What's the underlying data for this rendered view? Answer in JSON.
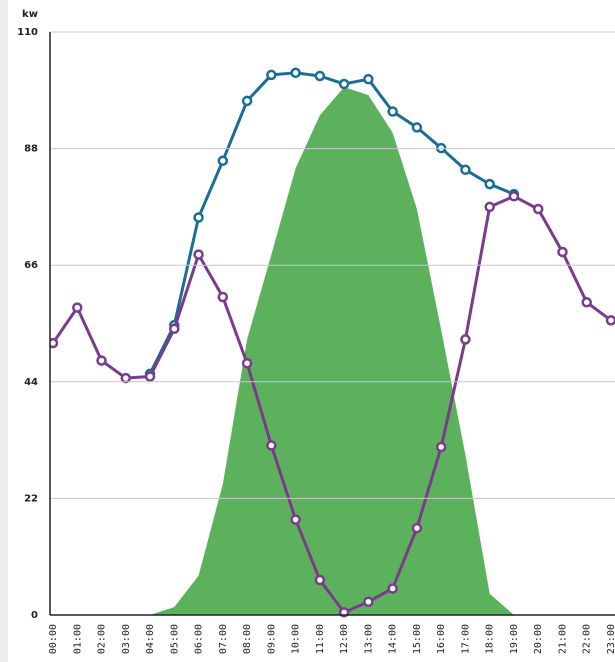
{
  "chart_data": {
    "type": "line",
    "y_label": "kw",
    "categories": [
      "00:00",
      "01:00",
      "02:00",
      "03:00",
      "04:00",
      "05:00",
      "06:00",
      "07:00",
      "08:00",
      "09:00",
      "10:00",
      "11:00",
      "12:00",
      "13:00",
      "14:00",
      "15:00",
      "16:00",
      "17:00",
      "18:00",
      "19:00",
      "20:00",
      "21:00",
      "22:00",
      "23:00"
    ],
    "series": [
      {
        "type": "area",
        "color": "#5cb25c",
        "values": [
          0,
          0,
          0,
          0,
          0,
          1.5,
          7.4,
          24.7,
          52,
          68,
          84.3,
          94.3,
          99.6,
          98.1,
          91,
          76.6,
          53.8,
          30.2,
          4,
          0,
          0,
          0,
          0,
          0
        ]
      },
      {
        "type": "line",
        "color": "#1a6e96",
        "values": [
          null,
          null,
          null,
          null,
          45.5,
          54.7,
          75,
          85.7,
          97,
          101.9,
          102.3,
          101.7,
          100.2,
          101.1,
          95,
          92,
          88.1,
          84,
          81.3,
          79.4,
          null,
          null,
          null,
          null
        ]
      },
      {
        "type": "line",
        "color": "#7b3b8c",
        "values": [
          51.3,
          58,
          48,
          44.7,
          45,
          54,
          68,
          60,
          47.5,
          32,
          18,
          6.6,
          0.5,
          2.5,
          5,
          16.4,
          31.7,
          52,
          77,
          79,
          76.6,
          68.5,
          59,
          55.6
        ]
      }
    ],
    "ylim": [
      0,
      110
    ],
    "yticks": [
      0,
      22,
      44,
      66,
      88,
      110
    ],
    "grid": true
  }
}
